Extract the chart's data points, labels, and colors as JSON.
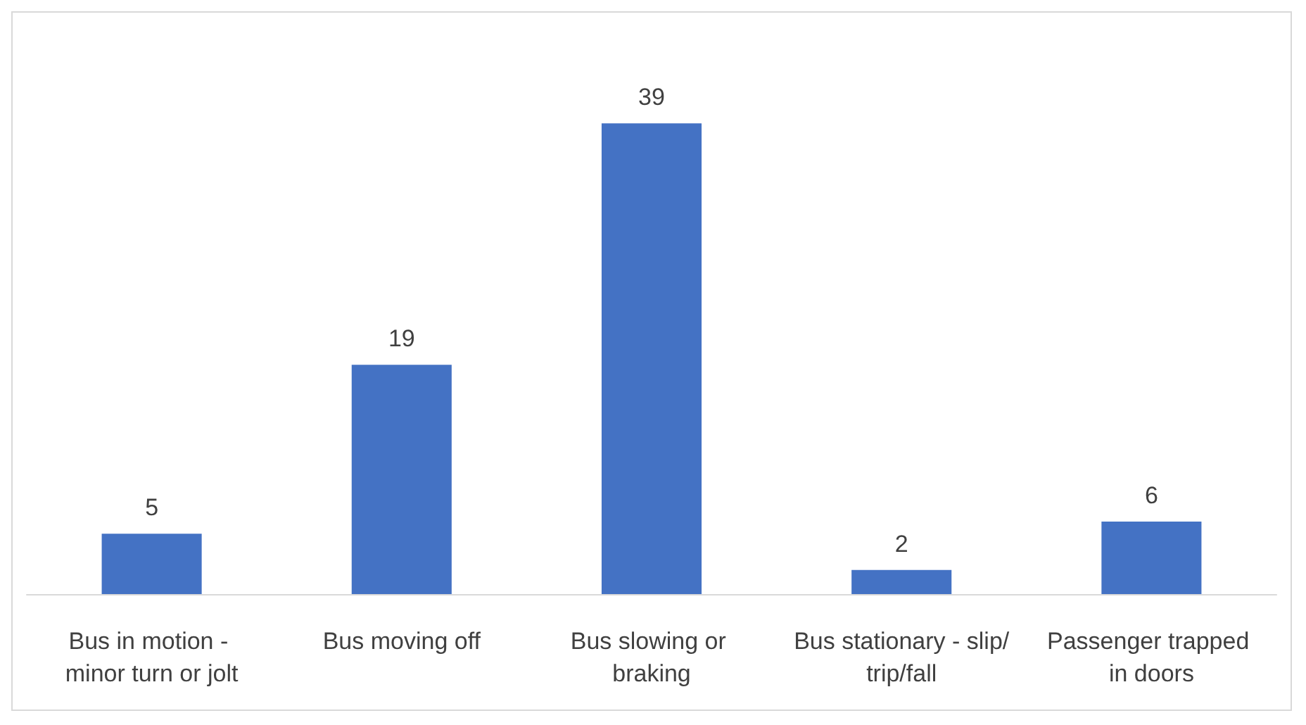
{
  "chart_data": {
    "type": "bar",
    "categories": [
      "Bus in motion - minor turn or jolt",
      "Bus moving off",
      "Bus slowing or braking",
      "Bus stationary - slip/trip/fall",
      "Passenger trapped in doors"
    ],
    "values": [
      5,
      19,
      39,
      2,
      6
    ],
    "color": "#4472c4",
    "data_labels": true
  }
}
